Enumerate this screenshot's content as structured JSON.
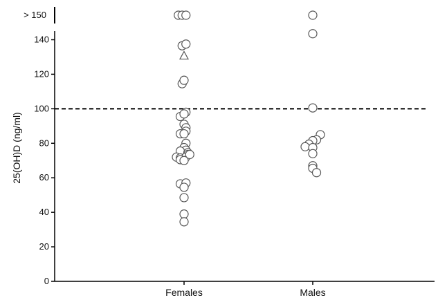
{
  "chart_data": {
    "type": "scatter",
    "title": "",
    "ylabel": "25(OH)D (ng/ml)",
    "xlabel": "",
    "categories": [
      "Females",
      "Males"
    ],
    "ylim": [
      0,
      145
    ],
    "yticks": [
      0,
      20,
      40,
      60,
      80,
      100,
      120,
      140
    ],
    "ytick_labels": [
      "0",
      "20",
      "40",
      "60",
      "80",
      "100",
      "120",
      "140"
    ],
    "break_label": "> 150",
    "reference_line": {
      "y": 100,
      "style": "dashed"
    },
    "grid": false,
    "colors": {
      "marker_stroke": "#555555",
      "axis": "#000000"
    },
    "series": [
      {
        "category": "Females",
        "points": [
          {
            "x": -0.03,
            "y": ">150",
            "marker": "circle"
          },
          {
            "x": -0.01,
            "y": ">150",
            "marker": "circle"
          },
          {
            "x": 0.01,
            "y": ">150",
            "marker": "circle"
          },
          {
            "x": -0.01,
            "y": 136.5,
            "marker": "circle"
          },
          {
            "x": 0.01,
            "y": 137.5,
            "marker": "circle"
          },
          {
            "x": 0.0,
            "y": 131,
            "marker": "triangle"
          },
          {
            "x": -0.01,
            "y": 114.5,
            "marker": "circle"
          },
          {
            "x": 0.0,
            "y": 116.5,
            "marker": "circle"
          },
          {
            "x": 0.01,
            "y": 98,
            "marker": "circle"
          },
          {
            "x": -0.02,
            "y": 95.5,
            "marker": "circle"
          },
          {
            "x": 0.0,
            "y": 97,
            "marker": "circle"
          },
          {
            "x": 0.0,
            "y": 91,
            "marker": "circle"
          },
          {
            "x": 0.01,
            "y": 89,
            "marker": "circle"
          },
          {
            "x": 0.01,
            "y": 87,
            "marker": "circle"
          },
          {
            "x": -0.02,
            "y": 85.5,
            "marker": "circle"
          },
          {
            "x": 0.0,
            "y": 85.5,
            "marker": "circle"
          },
          {
            "x": 0.01,
            "y": 80,
            "marker": "circle"
          },
          {
            "x": 0.0,
            "y": 77.5,
            "marker": "circle"
          },
          {
            "x": 0.01,
            "y": 76,
            "marker": "circle"
          },
          {
            "x": -0.02,
            "y": 75.5,
            "marker": "circle"
          },
          {
            "x": 0.02,
            "y": 74.5,
            "marker": "circle"
          },
          {
            "x": 0.02,
            "y": 73.5,
            "marker": "circle"
          },
          {
            "x": -0.04,
            "y": 72,
            "marker": "circle"
          },
          {
            "x": -0.02,
            "y": 71.5,
            "marker": "circle"
          },
          {
            "x": 0.01,
            "y": 72,
            "marker": "circle"
          },
          {
            "x": 0.03,
            "y": 73.5,
            "marker": "circle"
          },
          {
            "x": -0.02,
            "y": 70.5,
            "marker": "circle"
          },
          {
            "x": 0.0,
            "y": 70,
            "marker": "circle"
          },
          {
            "x": -0.02,
            "y": 56.5,
            "marker": "circle"
          },
          {
            "x": 0.01,
            "y": 57,
            "marker": "circle"
          },
          {
            "x": 0.0,
            "y": 54.5,
            "marker": "circle"
          },
          {
            "x": 0.0,
            "y": 48.5,
            "marker": "circle"
          },
          {
            "x": 0.0,
            "y": 39,
            "marker": "circle"
          },
          {
            "x": 0.0,
            "y": 34.5,
            "marker": "circle"
          }
        ]
      },
      {
        "category": "Males",
        "points": [
          {
            "x": 0.0,
            "y": ">150",
            "marker": "circle"
          },
          {
            "x": 0.0,
            "y": 143.5,
            "marker": "circle"
          },
          {
            "x": 0.0,
            "y": 100.5,
            "marker": "circle"
          },
          {
            "x": 0.04,
            "y": 85,
            "marker": "circle"
          },
          {
            "x": 0.02,
            "y": 82,
            "marker": "circle"
          },
          {
            "x": 0.0,
            "y": 81.5,
            "marker": "circle"
          },
          {
            "x": -0.02,
            "y": 79.5,
            "marker": "circle"
          },
          {
            "x": -0.04,
            "y": 78,
            "marker": "circle"
          },
          {
            "x": 0.0,
            "y": 77.5,
            "marker": "circle"
          },
          {
            "x": 0.0,
            "y": 74,
            "marker": "circle"
          },
          {
            "x": 0.0,
            "y": 67,
            "marker": "circle"
          },
          {
            "x": 0.0,
            "y": 65.5,
            "marker": "circle"
          },
          {
            "x": 0.02,
            "y": 63,
            "marker": "circle"
          }
        ]
      }
    ]
  }
}
